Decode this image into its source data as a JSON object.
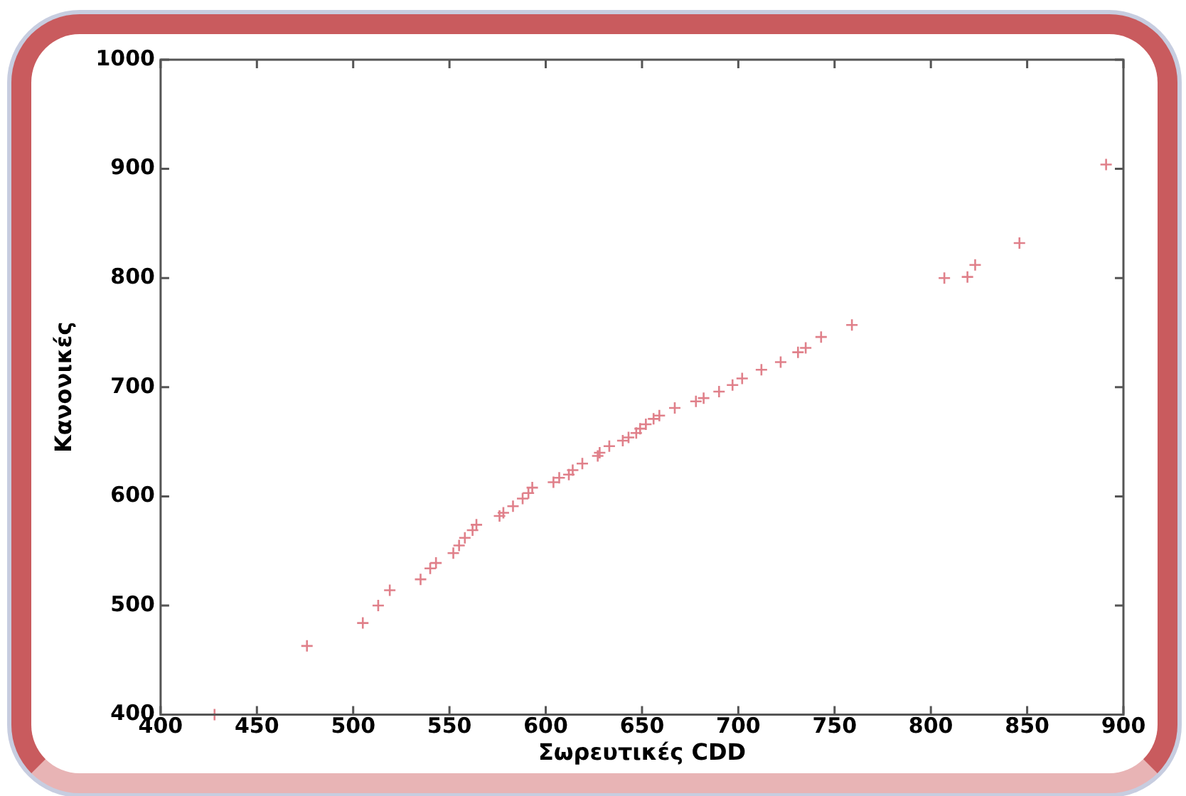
{
  "chart_data": {
    "type": "scatter",
    "xlabel": "Σωρευτικές CDD",
    "ylabel": "Κανονικές",
    "x": [
      428,
      476,
      505,
      513,
      519,
      535,
      540,
      543,
      552,
      555,
      558,
      562,
      564,
      576,
      578,
      583,
      588,
      591,
      593,
      604,
      607,
      612,
      614,
      619,
      627,
      628,
      633,
      640,
      643,
      647,
      649,
      652,
      656,
      659,
      667,
      678,
      682,
      690,
      697,
      702,
      712,
      722,
      731,
      735,
      743,
      759,
      807,
      819,
      823,
      846,
      891
    ],
    "values": [
      400,
      463,
      484,
      500,
      514,
      524,
      534,
      539,
      548,
      555,
      562,
      569,
      574,
      582,
      585,
      591,
      598,
      603,
      608,
      613,
      617,
      620,
      624,
      630,
      637,
      640,
      646,
      651,
      654,
      658,
      662,
      666,
      671,
      674,
      681,
      687,
      690,
      696,
      702,
      708,
      716,
      723,
      732,
      736,
      746,
      757,
      800,
      801,
      812,
      832,
      904
    ],
    "color": "#e0808a",
    "marker": "cross",
    "grid": false,
    "legend": false,
    "xlim": [
      400,
      900
    ],
    "xticks": [
      400,
      450,
      500,
      550,
      600,
      650,
      700,
      750,
      800,
      850,
      900
    ],
    "ylim": [
      400,
      1000
    ],
    "yticks": [
      400,
      500,
      600,
      700,
      800,
      900,
      1000
    ]
  }
}
